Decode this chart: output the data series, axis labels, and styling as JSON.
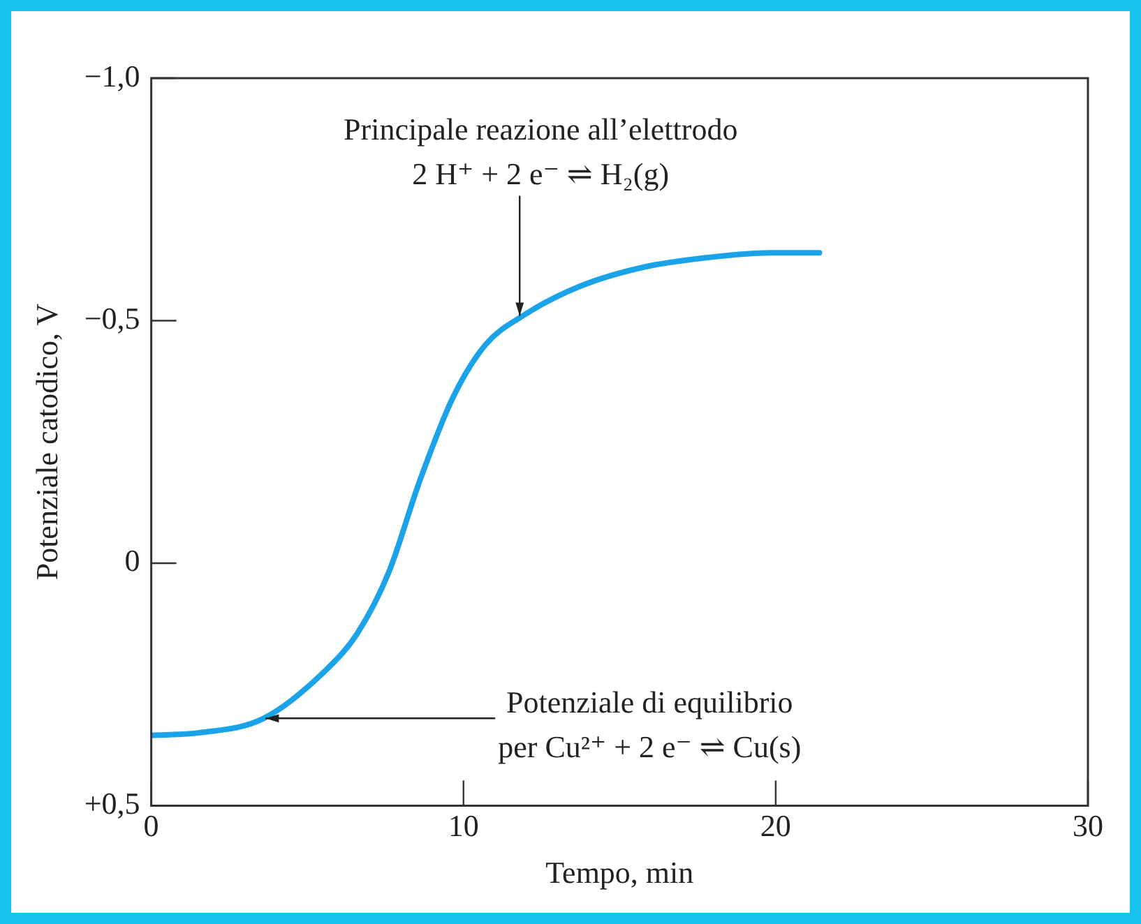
{
  "chart_data": {
    "type": "line",
    "xlabel": "Tempo, min",
    "ylabel": "Potenziale catodico, V",
    "series": [
      {
        "color": "#1aa3e8",
        "x": [
          0,
          1.5,
          3.6,
          5.6,
          6.6,
          7.6,
          8.6,
          9.65,
          10.7,
          11.9,
          13.7,
          15.75,
          17.8,
          19.8,
          21.4
        ],
        "values": [
          0.355,
          0.35,
          0.32,
          0.22,
          0.145,
          0.02,
          -0.17,
          -0.34,
          -0.45,
          -0.51,
          -0.57,
          -0.61,
          -0.63,
          -0.64,
          -0.64
        ]
      }
    ],
    "xlim": [
      0,
      30
    ],
    "xticks": [
      0,
      10,
      20,
      30
    ],
    "ylim": [
      0.5,
      -1.0
    ],
    "yticks": [
      {
        "value": -1.0,
        "label": "−1,0"
      },
      {
        "value": -0.5,
        "label": "−0,5"
      },
      {
        "value": 0,
        "label": "0"
      },
      {
        "value": 0.5,
        "label": "+0,5"
      }
    ],
    "marker": "none",
    "line_style": "solid",
    "legend": false,
    "annotations": [
      {
        "text": "Principale reazione all’elettrodo\n2 H⁺ + 2 e⁻ ⇌ H₂(g)",
        "x": 11.8,
        "y": -0.51
      },
      {
        "text": "Potenziale di equilibrio\nper Cu²⁺ + 2 e⁻ ⇌ Cu(s)",
        "x": 3.66,
        "y": 0.32
      }
    ]
  }
}
